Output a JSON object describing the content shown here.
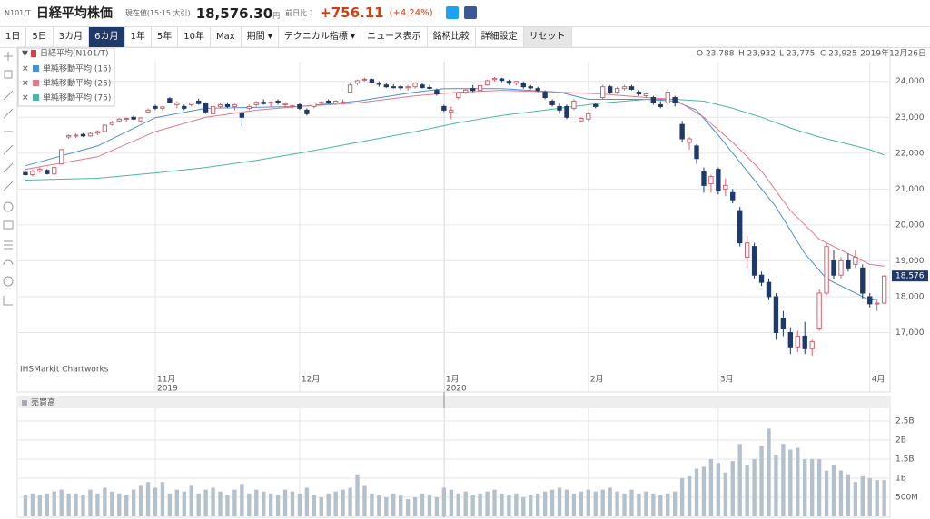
{
  "header": {
    "code": "N101/T",
    "title": "日経平均株価",
    "price_label": "現在値(15:15 大引)",
    "price": "18,576.30",
    "unit": "円",
    "change_label": "前日比：",
    "change": "+756.11",
    "change_pct": "(+4.24%)"
  },
  "toolbar": {
    "buttons": [
      "1日",
      "5日",
      "3カ月",
      "6カ月",
      "1年",
      "5年",
      "10年",
      "Max",
      "期間 ▾",
      "テクニカル指標 ▾",
      "ニュース表示",
      "銘柄比較",
      "詳細設定",
      "リセット"
    ],
    "active": 3
  },
  "chart_data": {
    "type": "candlestick",
    "info": [
      "O 23,788",
      "H 23,932",
      "L 23,775",
      "C 23,925"
    ],
    "date": "2019年12月26日",
    "source": "IHSMarkit Chartworks",
    "up_color": "#d9606e",
    "down_color": "#1f3a68",
    "grid": true,
    "xlim": [
      -1,
      119.8
    ],
    "xticks": [
      {
        "value": 18,
        "label": "11月",
        "year": "2019"
      },
      {
        "value": 38,
        "label": "12月"
      },
      {
        "value": 58,
        "label": "1月",
        "year": "2020"
      },
      {
        "value": 78,
        "label": "2月"
      },
      {
        "value": 96,
        "label": "3月"
      },
      {
        "value": 117,
        "label": "4月"
      }
    ],
    "ylim": [
      15950,
      24550
    ],
    "yticks": [
      {
        "value": 17000,
        "label": "17,000"
      },
      {
        "value": 18000,
        "label": "18,000"
      },
      {
        "value": 19000,
        "label": "19,000"
      },
      {
        "value": 20000,
        "label": "20,000"
      },
      {
        "value": 21000,
        "label": "21,000"
      },
      {
        "value": 22000,
        "label": "22,000"
      },
      {
        "value": 23000,
        "label": "23,000"
      },
      {
        "value": 24000,
        "label": "24,000"
      }
    ],
    "last_label": {
      "value": 18576,
      "label": "18,576"
    },
    "series": [
      {
        "name": "日経平均(N101/T)",
        "color": "#1f3a68",
        "ohlc": [
          [
            21460,
            21520,
            21380,
            21400
          ],
          [
            21400,
            21550,
            21350,
            21500
          ],
          [
            21500,
            21600,
            21450,
            21550
          ],
          [
            21520,
            21560,
            21400,
            21430
          ],
          [
            21420,
            21620,
            21400,
            21600
          ],
          [
            21700,
            22100,
            21680,
            22100
          ],
          [
            22450,
            22520,
            22400,
            22490
          ],
          [
            22480,
            22550,
            22420,
            22500
          ],
          [
            22520,
            22560,
            22450,
            22480
          ],
          [
            22480,
            22600,
            22460,
            22550
          ],
          [
            22560,
            22640,
            22500,
            22600
          ],
          [
            22600,
            22800,
            22580,
            22780
          ],
          [
            22800,
            22900,
            22760,
            22850
          ],
          [
            22900,
            22980,
            22850,
            22950
          ],
          [
            22950,
            23000,
            22880,
            22970
          ],
          [
            23000,
            23050,
            22920,
            22950
          ],
          [
            22900,
            23000,
            22850,
            22980
          ],
          [
            23150,
            23250,
            23100,
            23200
          ],
          [
            23300,
            23350,
            23200,
            23250
          ],
          [
            23250,
            23300,
            23180,
            23290
          ],
          [
            23520,
            23560,
            23400,
            23420
          ],
          [
            23350,
            23450,
            23250,
            23400
          ],
          [
            23300,
            23350,
            23200,
            23250
          ],
          [
            23350,
            23420,
            23300,
            23400
          ],
          [
            23450,
            23520,
            23350,
            23380
          ],
          [
            23400,
            23420,
            23100,
            23150
          ],
          [
            23100,
            23350,
            23080,
            23300
          ],
          [
            23300,
            23400,
            23250,
            23350
          ],
          [
            23350,
            23420,
            23250,
            23300
          ],
          [
            23300,
            23380,
            23200,
            23350
          ],
          [
            23100,
            23150,
            22750,
            23000
          ],
          [
            23250,
            23350,
            23200,
            23300
          ],
          [
            23350,
            23450,
            23300,
            23420
          ],
          [
            23420,
            23500,
            23350,
            23380
          ],
          [
            23400,
            23450,
            23300,
            23420
          ],
          [
            23450,
            23500,
            23350,
            23400
          ],
          [
            23350,
            23420,
            23280,
            23380
          ],
          [
            23300,
            23350,
            23250,
            23320
          ],
          [
            23350,
            23400,
            23200,
            23250
          ],
          [
            23200,
            23250,
            23050,
            23100
          ],
          [
            23300,
            23420,
            23250,
            23400
          ],
          [
            23400,
            23450,
            23350,
            23420
          ],
          [
            23450,
            23500,
            23380,
            23420
          ],
          [
            23400,
            23480,
            23350,
            23450
          ],
          [
            23420,
            23500,
            23380,
            23430
          ],
          [
            23700,
            23950,
            23680,
            23900
          ],
          [
            23950,
            24050,
            23900,
            24020
          ],
          [
            24050,
            24100,
            24000,
            24060
          ],
          [
            24050,
            24080,
            23950,
            23980
          ],
          [
            23950,
            24000,
            23850,
            23920
          ],
          [
            23900,
            23950,
            23820,
            23850
          ],
          [
            23850,
            23920,
            23800,
            23830
          ],
          [
            23850,
            23900,
            23750,
            23820
          ],
          [
            23820,
            23900,
            23750,
            23850
          ],
          [
            23850,
            23980,
            23800,
            23950
          ],
          [
            23900,
            23950,
            23800,
            23830
          ],
          [
            23830,
            23900,
            23780,
            23810
          ],
          [
            23750,
            23800,
            23600,
            23650
          ],
          [
            23300,
            23350,
            23150,
            23200
          ],
          [
            23150,
            23300,
            22950,
            23200
          ],
          [
            23550,
            23700,
            23500,
            23680
          ],
          [
            23700,
            23800,
            23650,
            23760
          ],
          [
            23800,
            23900,
            23700,
            23750
          ],
          [
            23750,
            23900,
            23720,
            23880
          ],
          [
            23900,
            24050,
            23880,
            24020
          ],
          [
            24050,
            24120,
            24000,
            24080
          ],
          [
            24070,
            24100,
            23980,
            24030
          ],
          [
            24000,
            24050,
            23900,
            23950
          ],
          [
            23950,
            24020,
            23880,
            24000
          ],
          [
            23950,
            24000,
            23800,
            23850
          ],
          [
            23850,
            23900,
            23780,
            23820
          ],
          [
            23800,
            23850,
            23700,
            23750
          ],
          [
            23700,
            23750,
            23500,
            23550
          ],
          [
            23450,
            23500,
            23300,
            23350
          ],
          [
            23300,
            23400,
            23100,
            23200
          ],
          [
            23300,
            23350,
            22950,
            23000
          ],
          [
            23250,
            23500,
            23200,
            23450
          ],
          [
            22900,
            23000,
            22850,
            22970
          ],
          [
            22950,
            23150,
            22900,
            23100
          ],
          [
            23350,
            23400,
            23250,
            23300
          ],
          [
            23550,
            23900,
            23500,
            23850
          ],
          [
            23850,
            23900,
            23650,
            23700
          ],
          [
            23700,
            23850,
            23650,
            23800
          ],
          [
            23800,
            23900,
            23750,
            23850
          ],
          [
            23850,
            23900,
            23750,
            23780
          ],
          [
            23700,
            23750,
            23600,
            23650
          ],
          [
            23600,
            23700,
            23550,
            23650
          ],
          [
            23550,
            23600,
            23350,
            23400
          ],
          [
            23350,
            23450,
            23250,
            23300
          ],
          [
            23400,
            23800,
            23350,
            23700
          ],
          [
            23550,
            23600,
            23300,
            23400
          ],
          [
            22800,
            22900,
            22300,
            22400
          ],
          [
            22300,
            22450,
            22100,
            22400
          ],
          [
            22200,
            22250,
            21700,
            21850
          ],
          [
            21500,
            21600,
            20900,
            21100
          ],
          [
            21150,
            21400,
            20900,
            21350
          ],
          [
            21550,
            21600,
            20850,
            20950
          ],
          [
            21000,
            21300,
            20800,
            21100
          ],
          [
            20900,
            21000,
            20600,
            20700
          ],
          [
            20400,
            20500,
            19400,
            19500
          ],
          [
            19100,
            19700,
            18800,
            19500
          ],
          [
            19400,
            19500,
            18500,
            18600
          ],
          [
            18600,
            18700,
            18300,
            18400
          ],
          [
            18400,
            18500,
            17900,
            18000
          ],
          [
            18000,
            18100,
            16800,
            17000
          ],
          [
            17400,
            17600,
            16900,
            17100
          ],
          [
            17000,
            17150,
            16400,
            16600
          ],
          [
            16600,
            17050,
            16450,
            16900
          ],
          [
            16900,
            17300,
            16400,
            16550
          ],
          [
            16550,
            16800,
            16350,
            16750
          ],
          [
            17100,
            18200,
            17050,
            18100
          ],
          [
            18100,
            19500,
            18050,
            19400
          ],
          [
            19000,
            19300,
            18500,
            18600
          ],
          [
            18600,
            19100,
            18500,
            19000
          ],
          [
            19000,
            19200,
            18700,
            18800
          ],
          [
            18900,
            19300,
            18800,
            19100
          ],
          [
            18800,
            18900,
            17950,
            18100
          ],
          [
            18000,
            18100,
            17700,
            17800
          ],
          [
            17800,
            17900,
            17600,
            17820
          ],
          [
            17820,
            18600,
            17800,
            18576
          ]
        ]
      },
      {
        "name": "単純移動平均 (15)",
        "color": "#4a90d9",
        "x": [
          0,
          10,
          18,
          25,
          38,
          46,
          54,
          58,
          66,
          74,
          78,
          86,
          90,
          93,
          96,
          100,
          104,
          108,
          111,
          114,
          117,
          119
        ],
        "values": [
          21650,
          22200,
          22990,
          23250,
          23300,
          23450,
          23700,
          23800,
          23800,
          23700,
          23500,
          23500,
          23450,
          23200,
          22500,
          21500,
          20500,
          19200,
          18500,
          18200,
          17900,
          17950
        ]
      },
      {
        "name": "単純移動平均 (25)",
        "color": "#e07a8a",
        "x": [
          0,
          10,
          18,
          25,
          32,
          38,
          46,
          54,
          60,
          66,
          74,
          80,
          86,
          90,
          94,
          98,
          102,
          106,
          110,
          114,
          117,
          119
        ],
        "values": [
          21550,
          21900,
          22600,
          23000,
          23200,
          23300,
          23400,
          23600,
          23700,
          23750,
          23700,
          23650,
          23550,
          23500,
          23000,
          22300,
          21500,
          20400,
          19600,
          19200,
          18900,
          18850
        ]
      },
      {
        "name": "単純移動平均 (75)",
        "color": "#4db6a0",
        "x": [
          0,
          10,
          18,
          25,
          32,
          38,
          46,
          54,
          60,
          66,
          74,
          80,
          86,
          90,
          94,
          98,
          102,
          106,
          110,
          114,
          117,
          119
        ],
        "values": [
          21250,
          21300,
          21450,
          21600,
          21800,
          22000,
          22300,
          22600,
          22850,
          23050,
          23250,
          23400,
          23500,
          23500,
          23450,
          23250,
          23000,
          22700,
          22450,
          22250,
          22100,
          21950
        ]
      }
    ],
    "volume": {
      "title": "売買高",
      "color": "#b4c0cc",
      "ylim": [
        0,
        2750000000
      ],
      "yticks": [
        {
          "value": 500000000,
          "label": "500M"
        },
        {
          "value": 1000000000,
          "label": "1B"
        },
        {
          "value": 1500000000,
          "label": "1.5B"
        },
        {
          "value": 2000000000,
          "label": "2B"
        },
        {
          "value": 2500000000,
          "label": "2.5B"
        }
      ],
      "values": [
        550000000,
        600000000,
        550000000,
        600000000,
        650000000,
        700000000,
        600000000,
        600000000,
        550000000,
        700000000,
        600000000,
        750000000,
        650000000,
        600000000,
        550000000,
        700000000,
        800000000,
        900000000,
        750000000,
        900000000,
        600000000,
        700000000,
        650000000,
        800000000,
        600000000,
        700000000,
        750000000,
        650000000,
        550000000,
        700000000,
        850000000,
        600000000,
        700000000,
        650000000,
        600000000,
        550000000,
        700000000,
        650000000,
        600000000,
        750000000,
        550000000,
        500000000,
        600000000,
        650000000,
        700000000,
        750000000,
        1100000000,
        800000000,
        600000000,
        550000000,
        500000000,
        600000000,
        550000000,
        450000000,
        500000000,
        600000000,
        550000000,
        500000000,
        750000000,
        700000000,
        600000000,
        650000000,
        550000000,
        600000000,
        650000000,
        700000000,
        600000000,
        550000000,
        600000000,
        500000000,
        550000000,
        600000000,
        650000000,
        700000000,
        750000000,
        700000000,
        600000000,
        650000000,
        700000000,
        650000000,
        700000000,
        750000000,
        650000000,
        600000000,
        700000000,
        600000000,
        650000000,
        600000000,
        550000000,
        600000000,
        650000000,
        1000000000,
        1050000000,
        1250000000,
        1300000000,
        1500000000,
        1400000000,
        1150000000,
        1450000000,
        1900000000,
        1350000000,
        1500000000,
        1850000000,
        2300000000,
        1600000000,
        1900000000,
        1750000000,
        1800000000,
        1500000000,
        1500000000,
        1500000000,
        1200000000,
        1350000000,
        1200000000,
        1100000000,
        900000000,
        1050000000,
        1000000000,
        950000000,
        950000000
      ]
    }
  }
}
